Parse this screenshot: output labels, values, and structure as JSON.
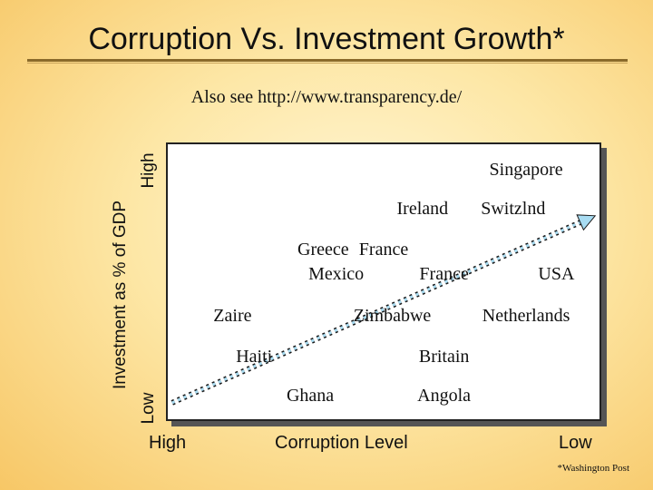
{
  "title": "Corruption Vs. Investment Growth*",
  "subtitle": "Also see http://www.transparency.de/",
  "footnote": "*Washington Post",
  "colors": {
    "trend_arrow": "#a8dcf2",
    "trend_arrow_outline": "#1a1a1a",
    "title_rule": "#8a6a2a"
  },
  "chart_data": {
    "type": "scatter",
    "xlabel": "Corruption Level",
    "ylabel": "Investment as % of GDP",
    "x_high_label": "High",
    "x_low_label": "Low",
    "y_high_label": "High",
    "y_low_label": "Low",
    "points": [
      {
        "label": "Singapore",
        "x": 8.3,
        "y": 9.0
      },
      {
        "label": "Ireland",
        "x": 5.9,
        "y": 7.6
      },
      {
        "label": "Switzlnd",
        "x": 8.0,
        "y": 7.6
      },
      {
        "label": "Greece",
        "x": 3.6,
        "y": 6.1
      },
      {
        "label": "France",
        "x": 5.0,
        "y": 6.1
      },
      {
        "label": "Mexico",
        "x": 3.9,
        "y": 5.2
      },
      {
        "label": "France",
        "x": 6.4,
        "y": 5.2
      },
      {
        "label": "USA",
        "x": 9.0,
        "y": 5.2
      },
      {
        "label": "Zaire",
        "x": 1.5,
        "y": 3.7
      },
      {
        "label": "Zimbabwe",
        "x": 5.2,
        "y": 3.7
      },
      {
        "label": "Netherlands",
        "x": 8.3,
        "y": 3.7
      },
      {
        "label": "Haiti",
        "x": 2.0,
        "y": 2.2
      },
      {
        "label": "Britain",
        "x": 6.4,
        "y": 2.2
      },
      {
        "label": "Ghana",
        "x": 3.3,
        "y": 0.8
      },
      {
        "label": "Angola",
        "x": 6.4,
        "y": 0.8
      }
    ],
    "trend": {
      "from": [
        0.1,
        0.6
      ],
      "to": [
        9.9,
        7.4
      ]
    },
    "xlim": [
      0,
      10
    ],
    "ylim": [
      0,
      10
    ],
    "grid": false
  }
}
